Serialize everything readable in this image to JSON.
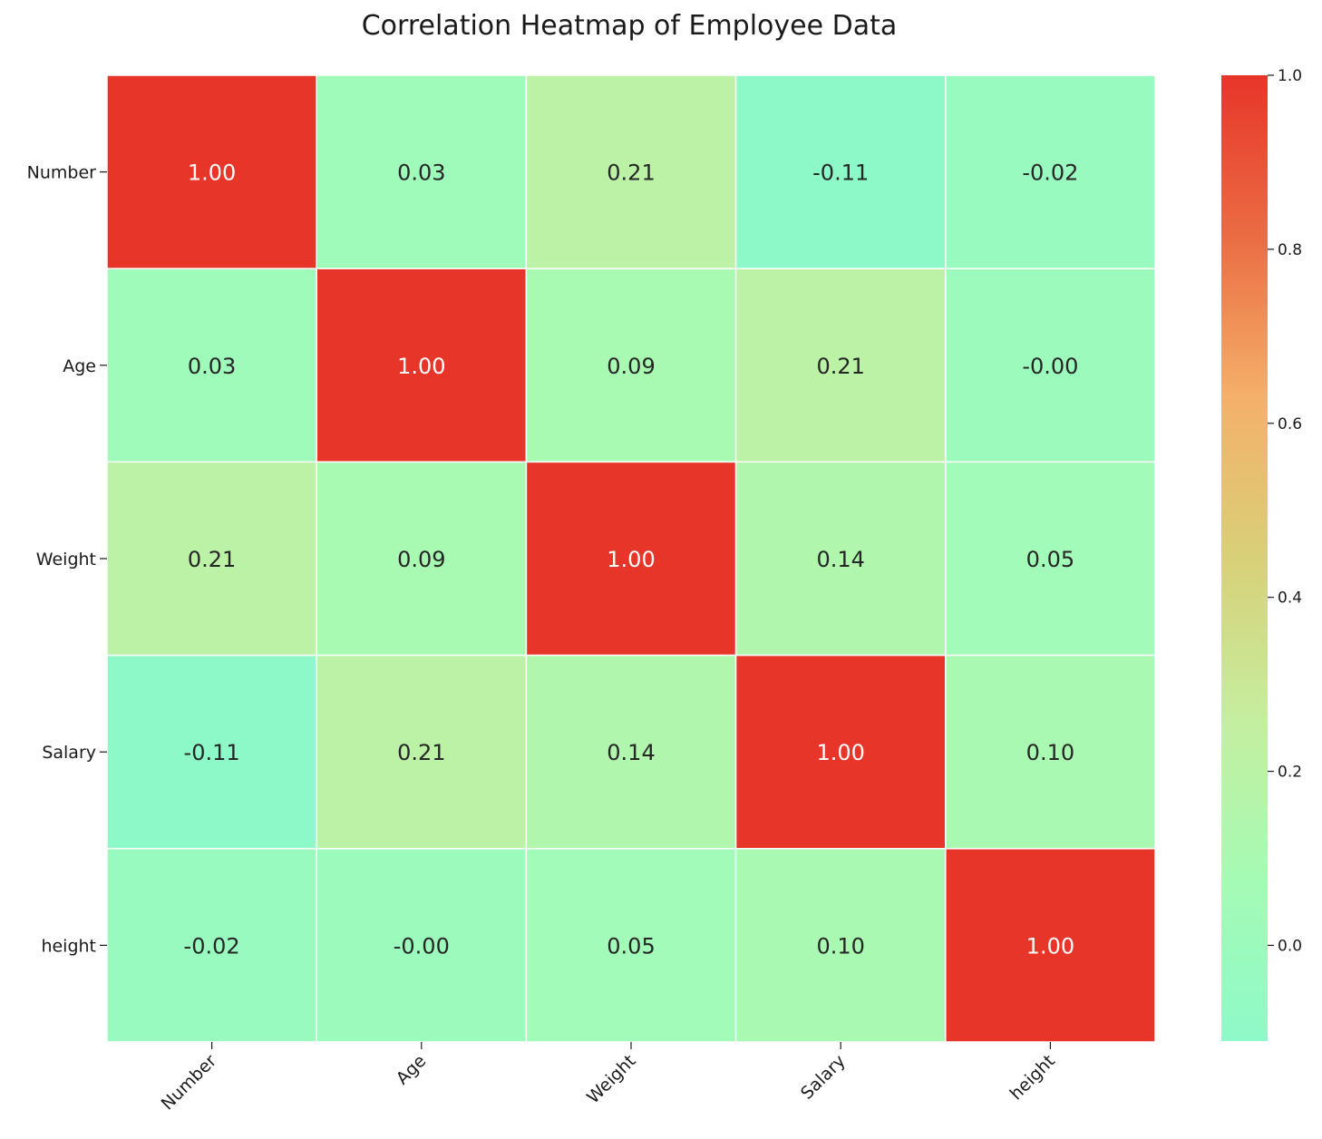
{
  "chart_data": {
    "type": "heatmap",
    "title": "Correlation Heatmap of Employee Data",
    "x_categories": [
      "Number",
      "Age",
      "Weight",
      "Salary",
      "height"
    ],
    "y_categories": [
      "Number",
      "Age",
      "Weight",
      "Salary",
      "height"
    ],
    "values": [
      [
        1.0,
        0.03,
        0.21,
        -0.11,
        -0.02
      ],
      [
        0.03,
        1.0,
        0.09,
        0.21,
        -0.0
      ],
      [
        0.21,
        0.09,
        1.0,
        0.14,
        0.05
      ],
      [
        -0.11,
        0.21,
        0.14,
        1.0,
        0.1
      ],
      [
        -0.02,
        -0.0,
        0.05,
        0.1,
        1.0
      ]
    ],
    "value_labels": [
      [
        "1.00",
        "0.03",
        "0.21",
        "-0.11",
        "-0.02"
      ],
      [
        "0.03",
        "1.00",
        "0.09",
        "0.21",
        "-0.00"
      ],
      [
        "0.21",
        "0.09",
        "1.00",
        "0.14",
        "0.05"
      ],
      [
        "-0.11",
        "0.21",
        "0.14",
        "1.00",
        "0.10"
      ],
      [
        "-0.02",
        "-0.00",
        "0.05",
        "0.10",
        "1.00"
      ]
    ],
    "colorbar": {
      "range": [
        -0.11,
        1.0
      ],
      "ticks": [
        0.0,
        0.2,
        0.4,
        0.6,
        0.8,
        1.0
      ],
      "tick_labels": [
        "0.0",
        "0.2",
        "0.4",
        "0.6",
        "0.8",
        "1.0"
      ],
      "colors": [
        "#8ef9c8",
        "#a5fbb5",
        "#c5ee9f",
        "#d8d078",
        "#f5b06a",
        "#ea6c43",
        "#e8352a"
      ]
    },
    "xtick_rotation": 45,
    "annotations": true,
    "grid": false
  }
}
